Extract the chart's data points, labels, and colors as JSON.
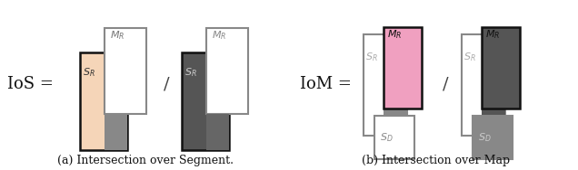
{
  "fig_width": 6.36,
  "fig_height": 1.88,
  "bg_color": "#ffffff",
  "ios_label": "IoS =",
  "iom_label": "IoM =",
  "caption_a": "(a) Intersection over Segment.",
  "caption_b": "(b) Intersection over Map",
  "colors": {
    "salmon": "#f5d5b8",
    "salmon_dark": "#e8c4a0",
    "gray_dark": "#555555",
    "gray_med": "#888888",
    "gray_light": "#aaaaaa",
    "gray_border": "#999999",
    "black": "#111111",
    "white": "#ffffff",
    "pink": "#f0a0c0",
    "pink_dark": "#e888aa"
  }
}
